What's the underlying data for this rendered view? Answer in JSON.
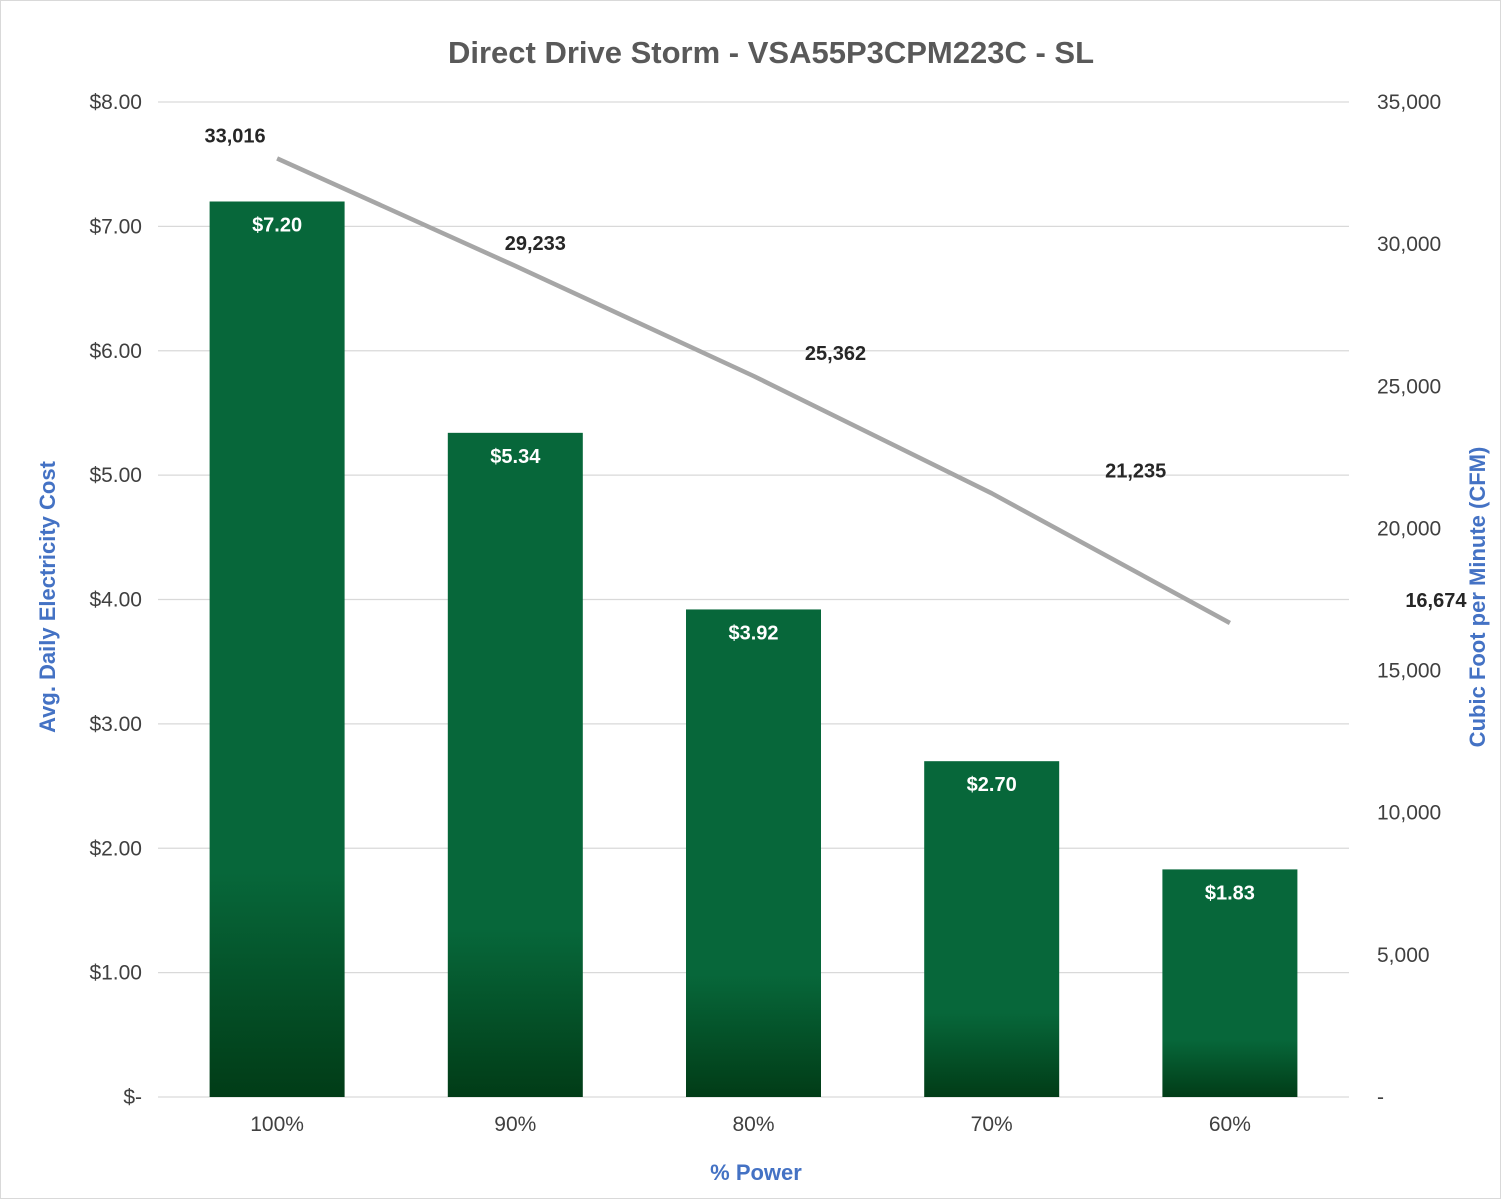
{
  "chart_data": {
    "type": "bar",
    "title": "Direct Drive Storm - VSA55P3CPM223C - SL",
    "xlabel": "% Power",
    "ylabel": "Avg. Daily Electricity Cost",
    "y2label": "Cubic Foot per Minute (CFM)",
    "categories": [
      "100%",
      "90%",
      "80%",
      "70%",
      "60%"
    ],
    "series": [
      {
        "type": "bar",
        "axis": "left",
        "values": [
          7.2,
          5.34,
          3.92,
          2.7,
          1.83
        ],
        "labels": [
          "$7.20",
          "$5.34",
          "$3.92",
          "$2.70",
          "$1.83"
        ]
      },
      {
        "type": "line",
        "axis": "right",
        "values": [
          33016,
          29233,
          25362,
          21235,
          16674
        ],
        "labels": [
          "33,016",
          "29,233",
          "25,362",
          "21,235",
          "16,674"
        ]
      }
    ],
    "ylim": [
      0,
      8
    ],
    "y2lim": [
      0,
      35000
    ],
    "yticks": [
      {
        "value": 0,
        "label": "$-"
      },
      {
        "value": 1,
        "label": "$1.00"
      },
      {
        "value": 2,
        "label": "$2.00"
      },
      {
        "value": 3,
        "label": "$3.00"
      },
      {
        "value": 4,
        "label": "$4.00"
      },
      {
        "value": 5,
        "label": "$5.00"
      },
      {
        "value": 6,
        "label": "$6.00"
      },
      {
        "value": 7,
        "label": "$7.00"
      },
      {
        "value": 8,
        "label": "$8.00"
      }
    ],
    "y2ticks": [
      {
        "value": 0,
        "label": "-"
      },
      {
        "value": 5000,
        "label": "5,000"
      },
      {
        "value": 10000,
        "label": "10,000"
      },
      {
        "value": 15000,
        "label": "15,000"
      },
      {
        "value": 20000,
        "label": "20,000"
      },
      {
        "value": 25000,
        "label": "25,000"
      },
      {
        "value": 30000,
        "label": "30,000"
      },
      {
        "value": 35000,
        "label": "35,000"
      }
    ],
    "grid": true,
    "legend": "none",
    "colors": {
      "bar_top": "#07673a",
      "bar_bottom": "#013c17",
      "line": "#a6a6a6",
      "axis_title": "#4472c4"
    }
  }
}
